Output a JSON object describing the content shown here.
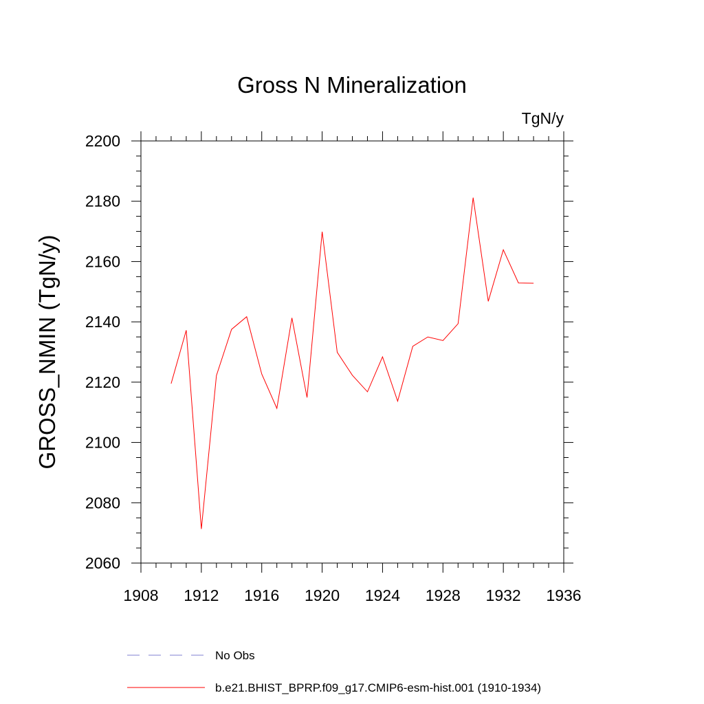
{
  "chart_data": {
    "type": "line",
    "title": "Gross N Mineralization",
    "units": "TgN/y",
    "xlabel": "",
    "ylabel": "GROSS_NMIN  (TgN/y)",
    "xlim": [
      1908,
      1936
    ],
    "ylim": [
      2060,
      2200
    ],
    "xticks": [
      1908,
      1912,
      1916,
      1920,
      1924,
      1928,
      1932,
      1936
    ],
    "yticks": [
      2060,
      2080,
      2100,
      2120,
      2140,
      2160,
      2180,
      2200
    ],
    "x_minor_step": 1,
    "y_minor_step": 5,
    "grid": false,
    "legend_position": "bottom",
    "series": [
      {
        "name": "b.e21.BHIST_BPRP.f09_g17.CMIP6-esm-hist.001 (1910-1934)",
        "color": "#ff0000",
        "style": "solid",
        "x": [
          1910,
          1911,
          1912,
          1913,
          1914,
          1915,
          1916,
          1917,
          1918,
          1919,
          1920,
          1921,
          1922,
          1923,
          1924,
          1925,
          1926,
          1927,
          1928,
          1929,
          1930,
          1931,
          1932,
          1933,
          1934
        ],
        "y": [
          2119.5,
          2137.2,
          2071.3,
          2122.2,
          2137.5,
          2141.7,
          2122.7,
          2111.3,
          2141.3,
          2114.9,
          2169.9,
          2129.9,
          2122.3,
          2116.8,
          2128.4,
          2113.7,
          2131.9,
          2135.0,
          2133.8,
          2139.4,
          2181.2,
          2146.8,
          2163.9,
          2152.9,
          2152.8
        ]
      }
    ],
    "legend": [
      {
        "label": "No Obs",
        "color": "#7f7fd0",
        "style": "dashed"
      },
      {
        "label": "b.e21.BHIST_BPRP.f09_g17.CMIP6-esm-hist.001 (1910-1934)",
        "color": "#ff0000",
        "style": "solid"
      }
    ]
  }
}
